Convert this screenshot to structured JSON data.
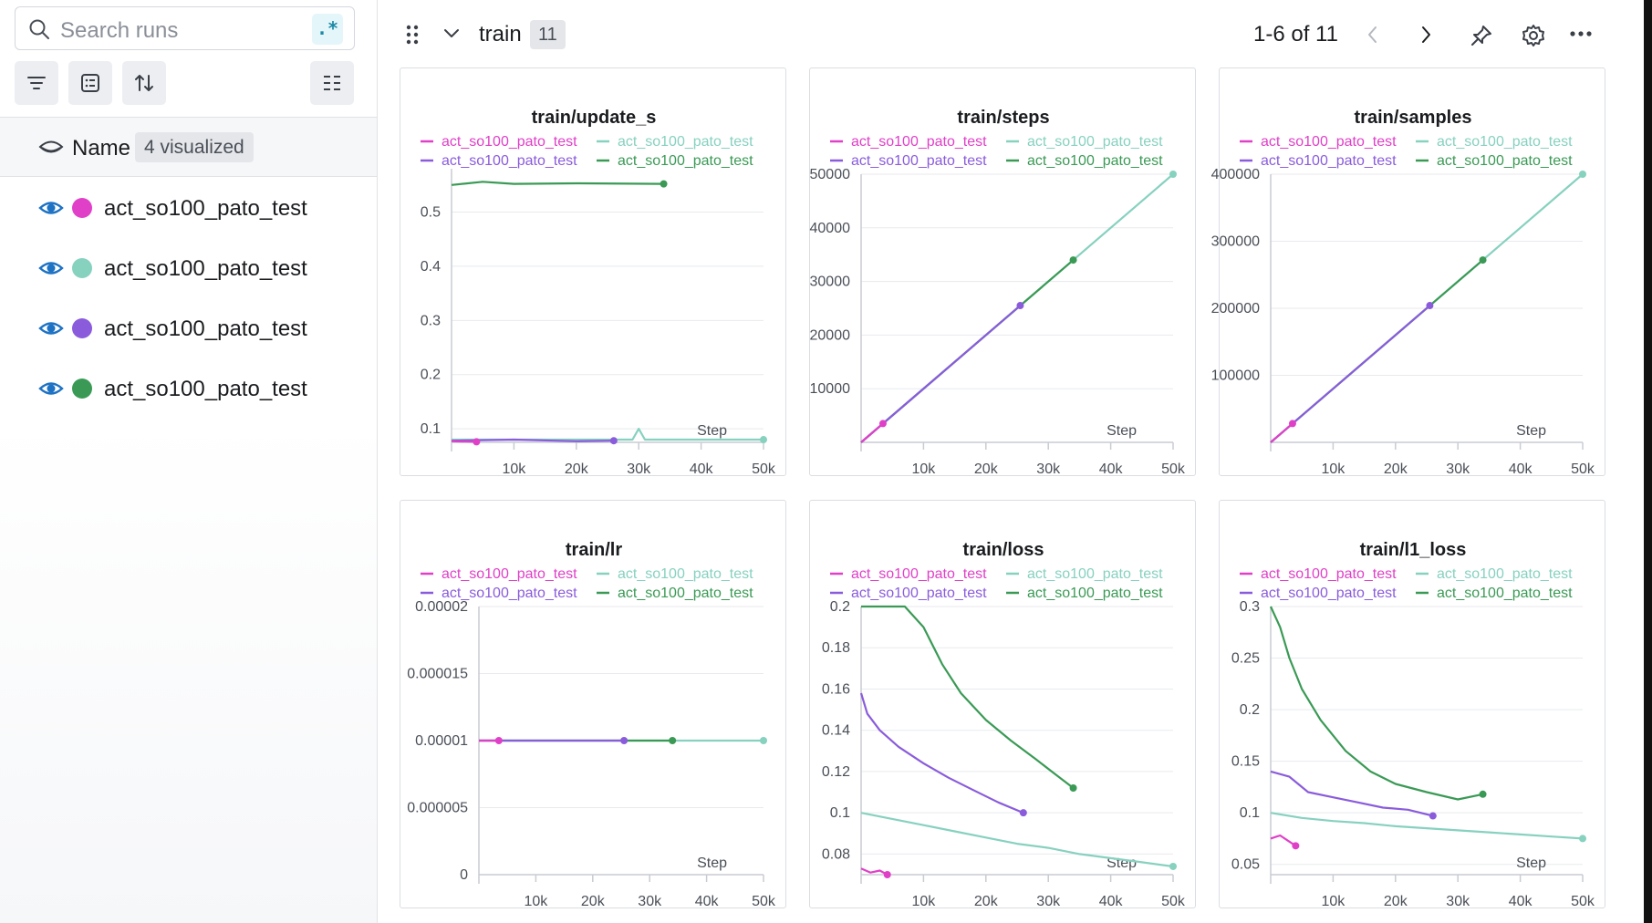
{
  "sidebar": {
    "search_placeholder": "Search runs",
    "regex_label": ".*",
    "name_header": "Name",
    "visualized_badge": "4 visualized",
    "runs": [
      {
        "name": "act_so100_pato_test",
        "color": "#e040c8"
      },
      {
        "name": "act_so100_pato_test",
        "color": "#87d1bf"
      },
      {
        "name": "act_so100_pato_test",
        "color": "#8a5cdc"
      },
      {
        "name": "act_so100_pato_test",
        "color": "#3a9a55"
      }
    ],
    "toolbar_icons": [
      "filter-icon",
      "table-icon",
      "sort-icon",
      "columns-icon"
    ]
  },
  "section": {
    "title": "train",
    "count": "11",
    "pager": "1-6 of 11"
  },
  "colors": {
    "magenta": "#e040c8",
    "teal": "#87d1bf",
    "purple": "#8a5cdc",
    "green": "#3a9a55",
    "accent": "#1b8aa5"
  },
  "chart_data": [
    {
      "type": "line",
      "title": "train/update_s",
      "xlabel": "Step",
      "x_ticks": [
        "10k",
        "20k",
        "30k",
        "40k",
        "50k"
      ],
      "y_ticks": [
        "0.1",
        "0.2",
        "0.3",
        "0.4",
        "0.5"
      ],
      "xlim": [
        0,
        50000
      ],
      "ylim": [
        0.075,
        0.58
      ],
      "legend": [
        "act_so100_pato_test",
        "act_so100_pato_test",
        "act_so100_pato_test",
        "act_so100_pato_test"
      ],
      "series": [
        {
          "name": "act_so100_pato_test",
          "color": "#87d1bf",
          "x": [
            0,
            10000,
            20000,
            29000,
            30000,
            31000,
            40000,
            50000
          ],
          "y": [
            0.08,
            0.08,
            0.08,
            0.08,
            0.1,
            0.08,
            0.08,
            0.08
          ]
        },
        {
          "name": "act_so100_pato_test",
          "color": "#3a9a55",
          "x": [
            0,
            5000,
            10000,
            20000,
            34000
          ],
          "y": [
            0.55,
            0.556,
            0.552,
            0.553,
            0.552
          ]
        },
        {
          "name": "act_so100_pato_test",
          "color": "#8a5cdc",
          "x": [
            0,
            10000,
            20000,
            26000
          ],
          "y": [
            0.078,
            0.08,
            0.077,
            0.078
          ]
        },
        {
          "name": "act_so100_pato_test",
          "color": "#e040c8",
          "x": [
            0,
            4000
          ],
          "y": [
            0.077,
            0.076
          ]
        }
      ]
    },
    {
      "type": "line",
      "title": "train/steps",
      "xlabel": "Step",
      "x_ticks": [
        "10k",
        "20k",
        "30k",
        "40k",
        "50k"
      ],
      "y_ticks": [
        "10000",
        "20000",
        "30000",
        "40000",
        "50000"
      ],
      "xlim": [
        0,
        50000
      ],
      "ylim": [
        0,
        50000
      ],
      "legend": [
        "act_so100_pato_test",
        "act_so100_pato_test",
        "act_so100_pato_test",
        "act_so100_pato_test"
      ],
      "series": [
        {
          "name": "act_so100_pato_test",
          "color": "#87d1bf",
          "x": [
            0,
            50000
          ],
          "y": [
            0,
            50000
          ]
        },
        {
          "name": "act_so100_pato_test",
          "color": "#3a9a55",
          "x": [
            0,
            34000
          ],
          "y": [
            0,
            34000
          ]
        },
        {
          "name": "act_so100_pato_test",
          "color": "#8a5cdc",
          "x": [
            0,
            25500
          ],
          "y": [
            0,
            25500
          ]
        },
        {
          "name": "act_so100_pato_test",
          "color": "#e040c8",
          "x": [
            0,
            3500
          ],
          "y": [
            0,
            3500
          ]
        }
      ]
    },
    {
      "type": "line",
      "title": "train/samples",
      "xlabel": "Step",
      "x_ticks": [
        "10k",
        "20k",
        "30k",
        "40k",
        "50k"
      ],
      "y_ticks": [
        "100000",
        "200000",
        "300000",
        "400000"
      ],
      "xlim": [
        0,
        50000
      ],
      "ylim": [
        0,
        400000
      ],
      "legend": [
        "act_so100_pato_test",
        "act_so100_pato_test",
        "act_so100_pato_test",
        "act_so100_pato_test"
      ],
      "series": [
        {
          "name": "act_so100_pato_test",
          "color": "#87d1bf",
          "x": [
            0,
            50000
          ],
          "y": [
            0,
            400000
          ]
        },
        {
          "name": "act_so100_pato_test",
          "color": "#3a9a55",
          "x": [
            0,
            34000
          ],
          "y": [
            0,
            272000
          ]
        },
        {
          "name": "act_so100_pato_test",
          "color": "#8a5cdc",
          "x": [
            0,
            25500
          ],
          "y": [
            0,
            204000
          ]
        },
        {
          "name": "act_so100_pato_test",
          "color": "#e040c8",
          "x": [
            0,
            3500
          ],
          "y": [
            0,
            28000
          ]
        }
      ]
    },
    {
      "type": "line",
      "title": "train/lr",
      "xlabel": "Step",
      "x_ticks": [
        "10k",
        "20k",
        "30k",
        "40k",
        "50k"
      ],
      "y_ticks": [
        "0",
        "0.000005",
        "0.00001",
        "0.000015",
        "0.00002"
      ],
      "xlim": [
        0,
        50000
      ],
      "ylim": [
        0,
        2e-05
      ],
      "legend": [
        "act_so100_pato_test",
        "act_so100_pato_test",
        "act_so100_pato_test",
        "act_so100_pato_test"
      ],
      "series": [
        {
          "name": "act_so100_pato_test",
          "color": "#87d1bf",
          "x": [
            0,
            50000
          ],
          "y": [
            1e-05,
            1e-05
          ]
        },
        {
          "name": "act_so100_pato_test",
          "color": "#3a9a55",
          "x": [
            0,
            34000
          ],
          "y": [
            1e-05,
            1e-05
          ]
        },
        {
          "name": "act_so100_pato_test",
          "color": "#8a5cdc",
          "x": [
            0,
            25500
          ],
          "y": [
            1e-05,
            1e-05
          ]
        },
        {
          "name": "act_so100_pato_test",
          "color": "#e040c8",
          "x": [
            0,
            3500
          ],
          "y": [
            1e-05,
            1e-05
          ]
        }
      ]
    },
    {
      "type": "line",
      "title": "train/loss",
      "xlabel": "Step",
      "x_ticks": [
        "10k",
        "20k",
        "30k",
        "40k",
        "50k"
      ],
      "y_ticks": [
        "0.08",
        "0.1",
        "0.12",
        "0.14",
        "0.16",
        "0.18",
        "0.2"
      ],
      "xlim": [
        0,
        50000
      ],
      "ylim": [
        0.07,
        0.2
      ],
      "legend": [
        "act_so100_pato_test",
        "act_so100_pato_test",
        "act_so100_pato_test",
        "act_so100_pato_test"
      ],
      "series": [
        {
          "name": "act_so100_pato_test",
          "color": "#87d1bf",
          "x": [
            0,
            5000,
            10000,
            15000,
            20000,
            25000,
            30000,
            35000,
            40000,
            45000,
            50000
          ],
          "y": [
            0.1,
            0.097,
            0.094,
            0.091,
            0.088,
            0.085,
            0.083,
            0.08,
            0.078,
            0.076,
            0.074
          ]
        },
        {
          "name": "act_so100_pato_test",
          "color": "#3a9a55",
          "x": [
            0,
            7000,
            10000,
            13000,
            16000,
            20000,
            24000,
            28000,
            31000,
            34000
          ],
          "y": [
            0.2,
            0.2,
            0.19,
            0.172,
            0.158,
            0.145,
            0.135,
            0.126,
            0.119,
            0.112
          ]
        },
        {
          "name": "act_so100_pato_test",
          "color": "#8a5cdc",
          "x": [
            0,
            1000,
            3000,
            6000,
            10000,
            14000,
            18000,
            22000,
            26000
          ],
          "y": [
            0.158,
            0.148,
            0.14,
            0.132,
            0.124,
            0.117,
            0.111,
            0.105,
            0.1
          ]
        },
        {
          "name": "act_so100_pato_test",
          "color": "#e040c8",
          "x": [
            0,
            1500,
            3000,
            4200
          ],
          "y": [
            0.073,
            0.071,
            0.072,
            0.07
          ]
        }
      ]
    },
    {
      "type": "line",
      "title": "train/l1_loss",
      "xlabel": "Step",
      "x_ticks": [
        "10k",
        "20k",
        "30k",
        "40k",
        "50k"
      ],
      "y_ticks": [
        "0.05",
        "0.1",
        "0.15",
        "0.2",
        "0.25",
        "0.3"
      ],
      "xlim": [
        0,
        50000
      ],
      "ylim": [
        0.04,
        0.3
      ],
      "legend": [
        "act_so100_pato_test",
        "act_so100_pato_test",
        "act_so100_pato_test",
        "act_so100_pato_test"
      ],
      "series": [
        {
          "name": "act_so100_pato_test",
          "color": "#87d1bf",
          "x": [
            0,
            5000,
            10000,
            15000,
            20000,
            25000,
            30000,
            35000,
            40000,
            45000,
            50000
          ],
          "y": [
            0.1,
            0.095,
            0.092,
            0.09,
            0.087,
            0.085,
            0.083,
            0.081,
            0.079,
            0.077,
            0.075
          ]
        },
        {
          "name": "act_so100_pato_test",
          "color": "#3a9a55",
          "x": [
            0,
            1500,
            3000,
            5000,
            8000,
            12000,
            16000,
            20000,
            25000,
            30000,
            34000
          ],
          "y": [
            0.3,
            0.28,
            0.25,
            0.22,
            0.19,
            0.16,
            0.14,
            0.128,
            0.12,
            0.113,
            0.118
          ]
        },
        {
          "name": "act_so100_pato_test",
          "color": "#8a5cdc",
          "x": [
            0,
            3000,
            6000,
            10000,
            14000,
            18000,
            22000,
            26000
          ],
          "y": [
            0.14,
            0.135,
            0.12,
            0.115,
            0.11,
            0.105,
            0.103,
            0.097
          ]
        },
        {
          "name": "act_so100_pato_test",
          "color": "#e040c8",
          "x": [
            0,
            1500,
            3000,
            4000
          ],
          "y": [
            0.075,
            0.078,
            0.072,
            0.068
          ]
        }
      ]
    }
  ]
}
